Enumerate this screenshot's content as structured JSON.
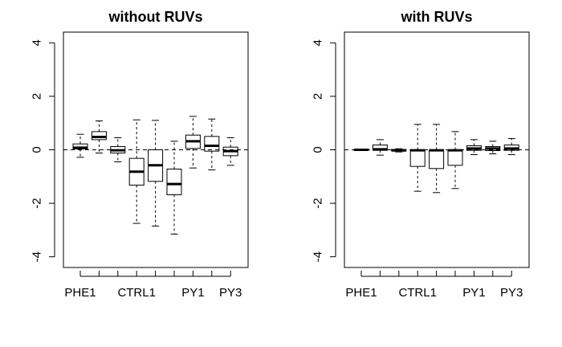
{
  "chart_data": [
    {
      "type": "boxplot",
      "title": "without RUVs",
      "xlabel": "",
      "ylabel": "",
      "ylim": [
        -4.4,
        4.4
      ],
      "yticks": [
        -4,
        -2,
        0,
        2,
        4
      ],
      "reference_line": 0,
      "x_tick_labels": [
        "PHE1",
        "",
        "",
        "CTRL1",
        "",
        "",
        "PY1",
        "",
        "PY3"
      ],
      "boxes": [
        {
          "min": -0.28,
          "q1": 0.03,
          "median": 0.08,
          "q3": 0.22,
          "max": 0.58
        },
        {
          "min": -0.12,
          "q1": 0.38,
          "median": 0.48,
          "q3": 0.68,
          "max": 1.08
        },
        {
          "min": -0.45,
          "q1": -0.12,
          "median": -0.02,
          "q3": 0.12,
          "max": 0.45
        },
        {
          "min": -2.75,
          "q1": -1.32,
          "median": -0.82,
          "q3": -0.32,
          "max": 1.12
        },
        {
          "min": -2.85,
          "q1": -1.18,
          "median": -0.58,
          "q3": 0.0,
          "max": 1.1
        },
        {
          "min": -3.15,
          "q1": -1.68,
          "median": -1.28,
          "q3": -0.72,
          "max": 0.32
        },
        {
          "min": -0.68,
          "q1": 0.05,
          "median": 0.32,
          "q3": 0.55,
          "max": 1.25
        },
        {
          "min": -0.75,
          "q1": -0.05,
          "median": 0.15,
          "q3": 0.5,
          "max": 1.15
        },
        {
          "min": -0.58,
          "q1": -0.22,
          "median": -0.05,
          "q3": 0.1,
          "max": 0.45
        }
      ]
    },
    {
      "type": "boxplot",
      "title": "with RUVs",
      "xlabel": "",
      "ylabel": "",
      "ylim": [
        -4.4,
        4.4
      ],
      "yticks": [
        -4,
        -2,
        0,
        2,
        4
      ],
      "reference_line": 0,
      "x_tick_labels": [
        "PHE1",
        "",
        "",
        "CTRL1",
        "",
        "",
        "PY1",
        "",
        "PY3"
      ],
      "boxes": [
        {
          "min": -0.02,
          "q1": -0.01,
          "median": 0.0,
          "q3": 0.02,
          "max": 0.03
        },
        {
          "min": -0.2,
          "q1": -0.02,
          "median": 0.02,
          "q3": 0.18,
          "max": 0.38
        },
        {
          "min": -0.08,
          "q1": -0.05,
          "median": -0.02,
          "q3": 0.01,
          "max": 0.04
        },
        {
          "min": -1.55,
          "q1": -0.62,
          "median": -0.02,
          "q3": 0.0,
          "max": 0.95
        },
        {
          "min": -1.6,
          "q1": -0.7,
          "median": -0.02,
          "q3": 0.0,
          "max": 0.95
        },
        {
          "min": -1.45,
          "q1": -0.58,
          "median": -0.02,
          "q3": 0.0,
          "max": 0.68
        },
        {
          "min": -0.18,
          "q1": -0.02,
          "median": 0.05,
          "q3": 0.15,
          "max": 0.38
        },
        {
          "min": -0.15,
          "q1": -0.03,
          "median": 0.05,
          "q3": 0.12,
          "max": 0.32
        },
        {
          "min": -0.18,
          "q1": -0.02,
          "median": 0.05,
          "q3": 0.18,
          "max": 0.42
        }
      ]
    }
  ]
}
